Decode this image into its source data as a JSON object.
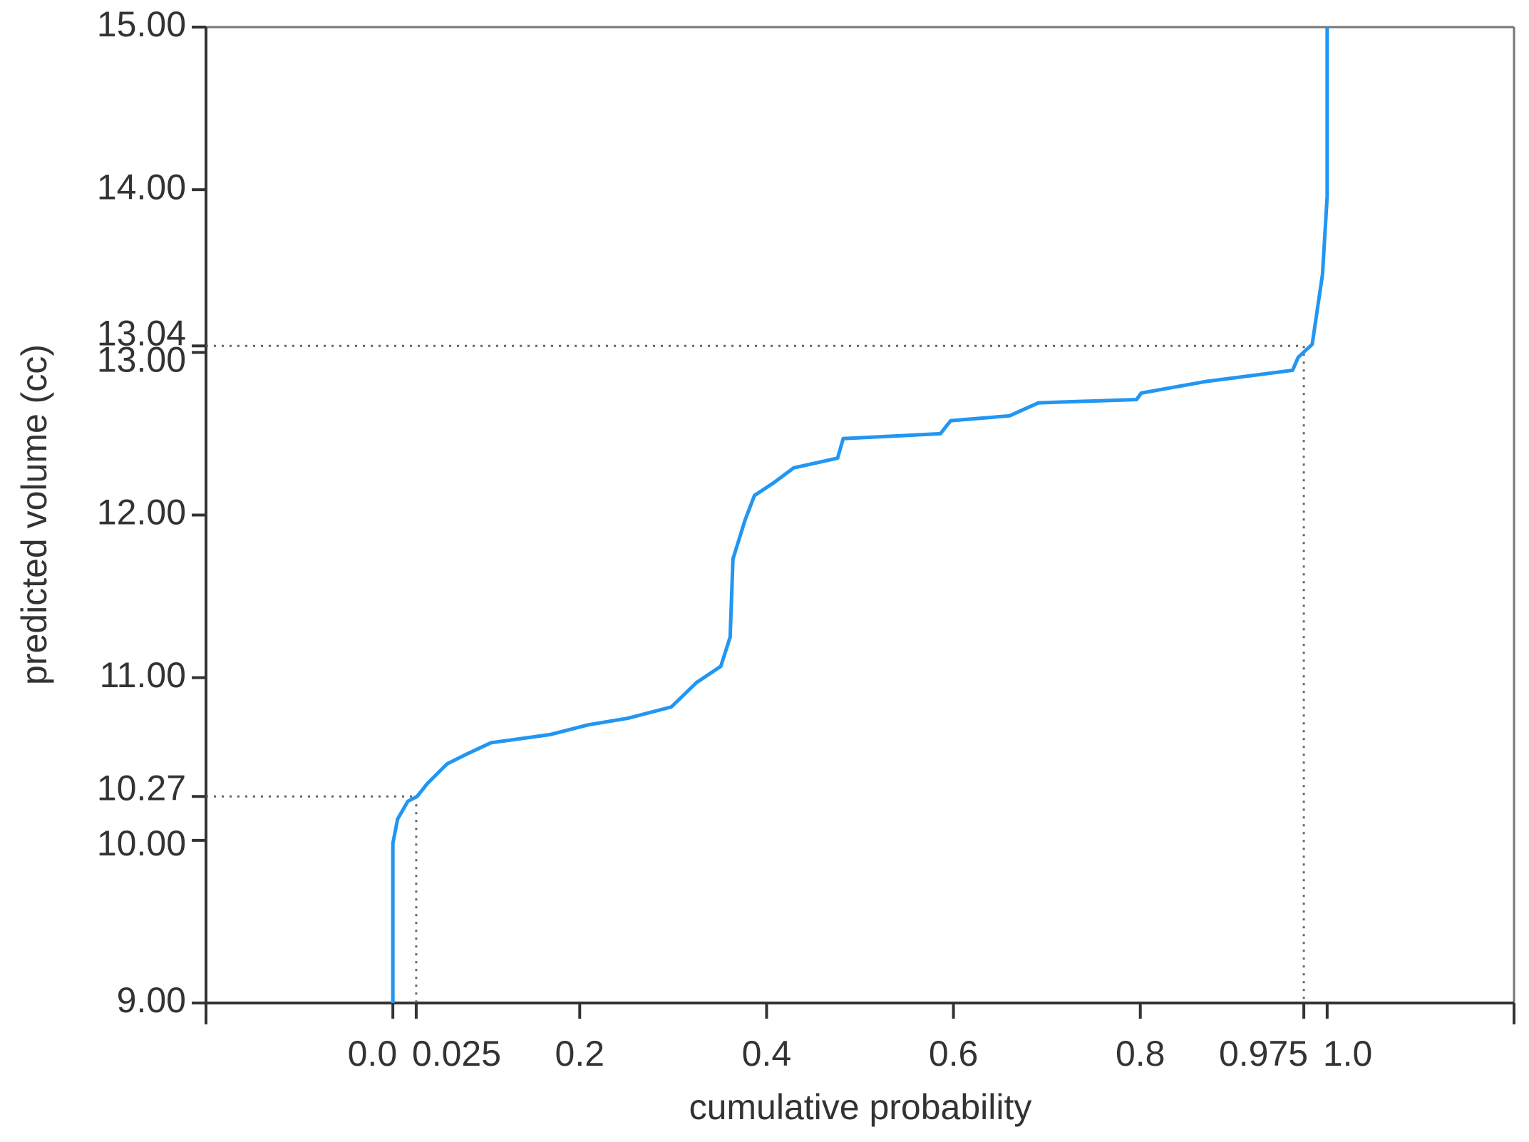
{
  "chart_data": {
    "type": "line",
    "x_label": "cumulative probability",
    "y_label": "predicted volume (cc)",
    "xlim": [
      -0.2,
      1.2
    ],
    "ylim": [
      9,
      15
    ],
    "xticks": [
      {
        "value": 0,
        "label": "0.0"
      },
      0.025,
      0.2,
      0.4,
      0.6,
      0.8,
      0.975,
      {
        "value": 1,
        "label": "1.0"
      }
    ],
    "yticks": [
      {
        "value": 9,
        "label": "9.00"
      },
      {
        "value": 10,
        "label": "10.00"
      },
      {
        "value": 10.27,
        "label": "10.27"
      },
      {
        "value": 11,
        "label": "11.00"
      },
      {
        "value": 12,
        "label": "12.00"
      },
      {
        "value": 13,
        "label": "13.00"
      },
      {
        "value": 13.04,
        "label": "13.04"
      },
      {
        "value": 14,
        "label": "14.00"
      },
      {
        "value": 15,
        "label": "15.00"
      }
    ],
    "series": [
      {
        "color": "#2196f3",
        "x": [
          0,
          0,
          0.005,
          0.016,
          0.026,
          0.037,
          0.058,
          0.079,
          0.105,
          0.168,
          0.209,
          0.251,
          0.298,
          0.325,
          0.351,
          0.361,
          0.364,
          0.377,
          0.387,
          0.408,
          0.429,
          0.476,
          0.482,
          0.586,
          0.597,
          0.66,
          0.691,
          0.796,
          0.801,
          0.869,
          0.963,
          0.969,
          0.984,
          0.995,
          1.0,
          1.0
        ],
        "values": [
          9,
          9.98,
          10.13,
          10.24,
          10.27,
          10.35,
          10.47,
          10.53,
          10.6,
          10.65,
          10.71,
          10.75,
          10.82,
          10.97,
          11.07,
          11.25,
          11.73,
          11.97,
          12.12,
          12.2,
          12.29,
          12.35,
          12.47,
          12.5,
          12.58,
          12.61,
          12.69,
          12.71,
          12.75,
          12.82,
          12.89,
          12.97,
          13.05,
          13.48,
          13.96,
          15
        ]
      }
    ]
  }
}
